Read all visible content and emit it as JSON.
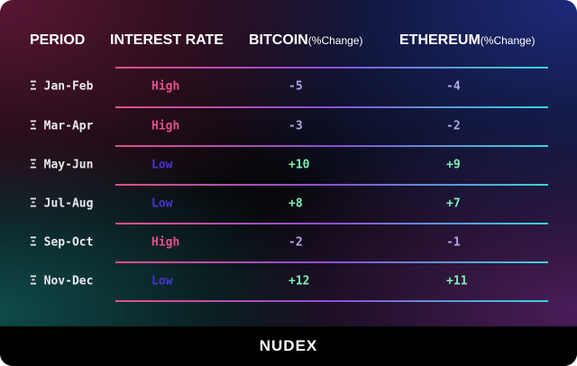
{
  "header": {
    "columns": [
      {
        "main": "PERIOD"
      },
      {
        "main": "INTEREST RATE"
      },
      {
        "main": "BITCOIN",
        "sub": "(%Change)"
      },
      {
        "main": "ETHEREUM",
        "sub": "(%Change)"
      }
    ]
  },
  "table": {
    "rows": [
      [
        "Ξ Jan-Feb",
        "High",
        "-5",
        "-4"
      ],
      [
        "Ξ Mar-Apr",
        "High",
        "-3",
        "-2"
      ],
      [
        "Ξ May-Jun",
        "Low",
        "+10",
        "+9"
      ],
      [
        "Ξ Jul-Aug",
        "Low",
        "+8",
        "+7"
      ],
      [
        "Ξ Sep-Oct",
        "High",
        "-2",
        "-1"
      ],
      [
        "Ξ Nov-Dec",
        "Low",
        "+12",
        "+11"
      ]
    ]
  },
  "footer": {
    "logo": "NUDEX"
  }
}
